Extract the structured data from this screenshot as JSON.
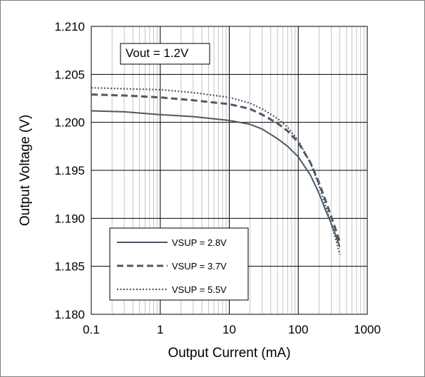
{
  "chart_data": {
    "type": "line",
    "title": "",
    "xlabel": "Output Current (mA)",
    "ylabel": "Output Voltage (V)",
    "x_scale": "log",
    "xlim": [
      0.1,
      1000
    ],
    "ylim": [
      1.18,
      1.21
    ],
    "x_ticks": [
      "0.1",
      "1",
      "10",
      "100",
      "1000"
    ],
    "y_ticks": [
      "1.180",
      "1.185",
      "1.190",
      "1.195",
      "1.200",
      "1.205",
      "1.210"
    ],
    "grid": true,
    "legend_position": "bottom-left",
    "annotation": "Vout = 1.2V",
    "series": [
      {
        "name": "VSUP = 2.8V",
        "style": "solid",
        "color": "#4d5966",
        "x": [
          0.1,
          0.3,
          1,
          3,
          10,
          20,
          30,
          50,
          70,
          100,
          150,
          200,
          250,
          300,
          350,
          400
        ],
        "y": [
          1.2012,
          1.2011,
          1.2008,
          1.2006,
          1.2002,
          1.1998,
          1.1993,
          1.1983,
          1.1975,
          1.1964,
          1.1945,
          1.1926,
          1.1908,
          1.1895,
          1.1882,
          1.187
        ]
      },
      {
        "name": "VSUP = 3.7V",
        "style": "dashed",
        "color": "#4d5966",
        "x": [
          0.1,
          0.3,
          1,
          3,
          10,
          20,
          30,
          50,
          70,
          100,
          150,
          200,
          250,
          300,
          350,
          400
        ],
        "y": [
          1.2029,
          1.2028,
          1.2026,
          1.2023,
          1.2019,
          1.2014,
          1.2008,
          1.1999,
          1.1991,
          1.1979,
          1.1958,
          1.1937,
          1.1918,
          1.1902,
          1.1888,
          1.1875
        ]
      },
      {
        "name": "VSUP = 5.5V",
        "style": "dotted",
        "color": "#4d5966",
        "x": [
          0.1,
          0.3,
          1,
          3,
          10,
          20,
          30,
          50,
          70,
          100,
          150,
          200,
          250,
          300,
          350,
          400
        ],
        "y": [
          1.2036,
          1.2035,
          1.2034,
          1.2031,
          1.2026,
          1.202,
          1.2014,
          1.2004,
          1.1995,
          1.1981,
          1.1958,
          1.1934,
          1.1912,
          1.1895,
          1.1878,
          1.1862
        ]
      }
    ]
  }
}
